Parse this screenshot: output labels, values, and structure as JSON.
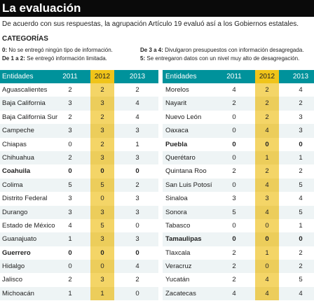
{
  "title": "La evaluación",
  "subtitle": "De acuerdo con sus respuestas, la agrupación Artículo 19 evaluó así a los Gobiernos estatales.",
  "categories": {
    "heading": "CATEGORÍAS",
    "items": [
      {
        "key": "0:",
        "text": "No se entregó ningún tipo de información."
      },
      {
        "key": "De 1 a 2:",
        "text": "Se entregó información limitada."
      },
      {
        "key": "De 3 a 4:",
        "text": "Divulgaron presupuestos con información desagregada."
      },
      {
        "key": "5:",
        "text": "Se entregaron datos con un nivel muy alto de desagregación."
      }
    ]
  },
  "table": {
    "headers": [
      "Entidades",
      "2011",
      "2012",
      "2013"
    ],
    "left": [
      {
        "name": "Aguascalientes",
        "v": [
          "2",
          "2",
          "2"
        ],
        "bold": false
      },
      {
        "name": "Baja California",
        "v": [
          "3",
          "3",
          "4"
        ],
        "bold": false
      },
      {
        "name": "Baja California Sur",
        "v": [
          "2",
          "2",
          "4"
        ],
        "bold": false
      },
      {
        "name": "Campeche",
        "v": [
          "3",
          "3",
          "3"
        ],
        "bold": false
      },
      {
        "name": "Chiapas",
        "v": [
          "0",
          "2",
          "1"
        ],
        "bold": false
      },
      {
        "name": "Chihuahua",
        "v": [
          "2",
          "3",
          "3"
        ],
        "bold": false
      },
      {
        "name": "Coahuila",
        "v": [
          "0",
          "0",
          "0"
        ],
        "bold": true
      },
      {
        "name": "Colima",
        "v": [
          "5",
          "5",
          "2"
        ],
        "bold": false
      },
      {
        "name": "Distrito Federal",
        "v": [
          "3",
          "0",
          "3"
        ],
        "bold": false
      },
      {
        "name": "Durango",
        "v": [
          "3",
          "3",
          "3"
        ],
        "bold": false
      },
      {
        "name": "Estado de México",
        "v": [
          "4",
          "5",
          "0"
        ],
        "bold": false
      },
      {
        "name": "Guanajuato",
        "v": [
          "1",
          "3",
          "3"
        ],
        "bold": false
      },
      {
        "name": "Guerrero",
        "v": [
          "0",
          "0",
          "0"
        ],
        "bold": true
      },
      {
        "name": "Hidalgo",
        "v": [
          "0",
          "0",
          "4"
        ],
        "bold": false
      },
      {
        "name": "Jalisco",
        "v": [
          "2",
          "3",
          "2"
        ],
        "bold": false
      },
      {
        "name": "Michoacán",
        "v": [
          "1",
          "1",
          "0"
        ],
        "bold": false
      }
    ],
    "right": [
      {
        "name": "Morelos",
        "v": [
          "4",
          "2",
          "4"
        ],
        "bold": false
      },
      {
        "name": "Nayarit",
        "v": [
          "2",
          "2",
          "2"
        ],
        "bold": false
      },
      {
        "name": "Nuevo León",
        "v": [
          "0",
          "2",
          "3"
        ],
        "bold": false
      },
      {
        "name": "Oaxaca",
        "v": [
          "0",
          "4",
          "3"
        ],
        "bold": false
      },
      {
        "name": "Puebla",
        "v": [
          "0",
          "0",
          "0"
        ],
        "bold": true
      },
      {
        "name": "Querétaro",
        "v": [
          "0",
          "1",
          "1"
        ],
        "bold": false
      },
      {
        "name": "Quintana Roo",
        "v": [
          "2",
          "2",
          "2"
        ],
        "bold": false
      },
      {
        "name": "San Luis Potosí",
        "v": [
          "0",
          "4",
          "5"
        ],
        "bold": false
      },
      {
        "name": "Sinaloa",
        "v": [
          "3",
          "3",
          "4"
        ],
        "bold": false
      },
      {
        "name": "Sonora",
        "v": [
          "5",
          "4",
          "5"
        ],
        "bold": false
      },
      {
        "name": "Tabasco",
        "v": [
          "0",
          "0",
          "1"
        ],
        "bold": false
      },
      {
        "name": "Tamaulipas",
        "v": [
          "0",
          "0",
          "0"
        ],
        "bold": true
      },
      {
        "name": "Tlaxcala",
        "v": [
          "2",
          "1",
          "2"
        ],
        "bold": false
      },
      {
        "name": "Veracruz",
        "v": [
          "2",
          "0",
          "2"
        ],
        "bold": false
      },
      {
        "name": "Yucatán",
        "v": [
          "2",
          "4",
          "5"
        ],
        "bold": false
      },
      {
        "name": "Zacatecas",
        "v": [
          "4",
          "4",
          "4"
        ],
        "bold": false
      }
    ]
  },
  "colors": {
    "header_bg": "#00929b",
    "highlight_2012": "#f0c419",
    "title_bg": "#0a0a0a"
  }
}
